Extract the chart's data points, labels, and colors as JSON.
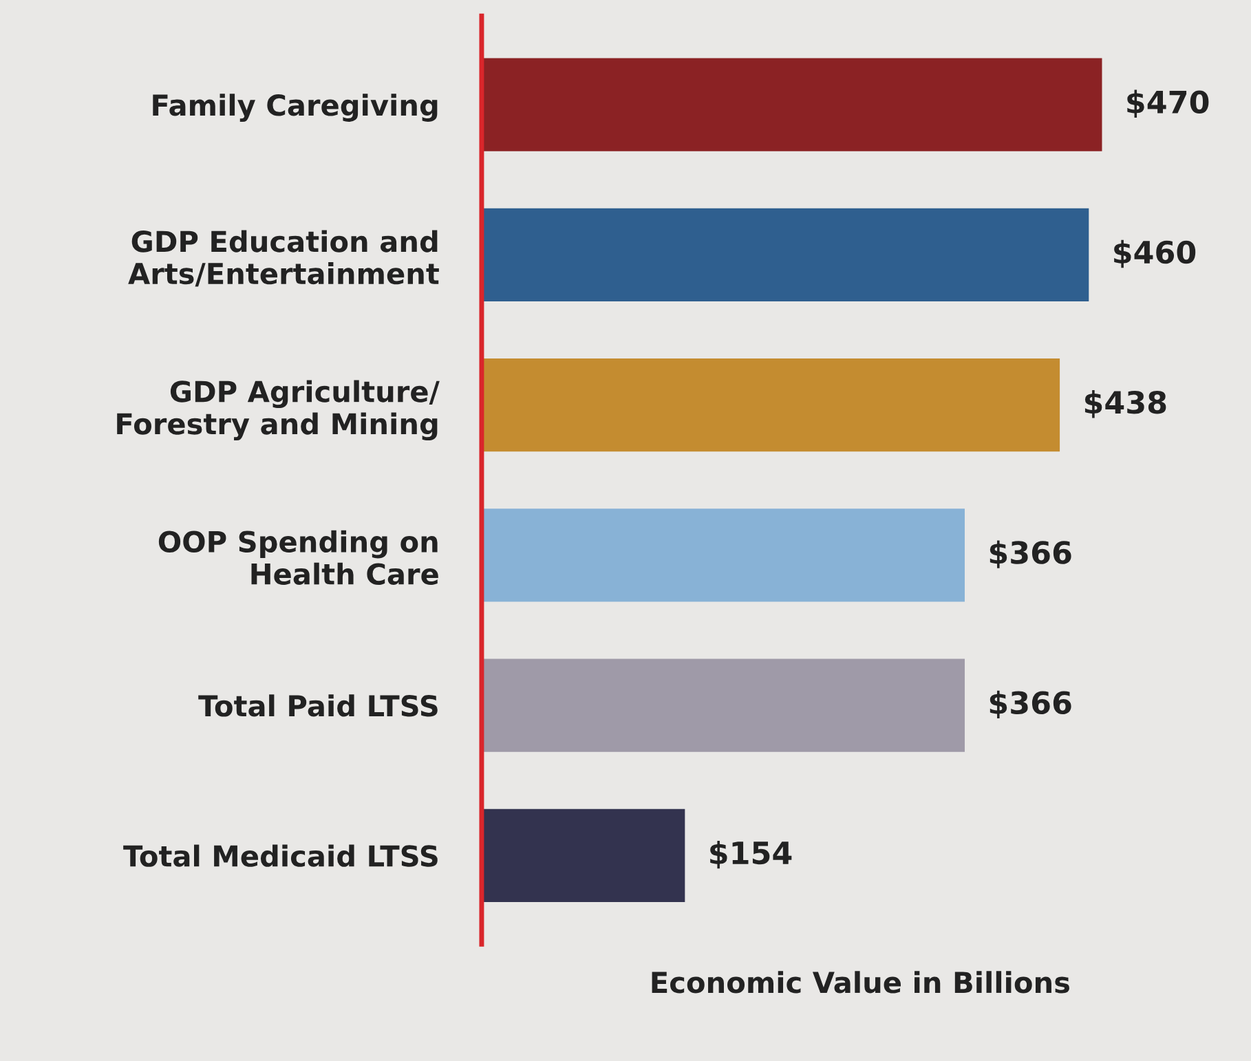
{
  "chart_data": {
    "type": "bar",
    "orientation": "horizontal",
    "xlabel": "Economic Value in Billions",
    "categories": [
      "Family Caregiving",
      "GDP Education and\nArts/Entertainment",
      "GDP Agriculture/\nForestry and Mining",
      "OOP Spending on\nHealth Care",
      "Total Paid LTSS",
      "Total Medicaid LTSS"
    ],
    "values": [
      470,
      460,
      438,
      366,
      366,
      154
    ],
    "value_labels": [
      "$470",
      "$460",
      "$438",
      "$366",
      "$366",
      "$154"
    ],
    "colors": [
      "#8b2224",
      "#2f5f8f",
      "#c48c30",
      "#88b2d6",
      "#9f9aa8",
      "#33334f"
    ],
    "tick_labels": "y",
    "grid": false,
    "legend": false
  }
}
